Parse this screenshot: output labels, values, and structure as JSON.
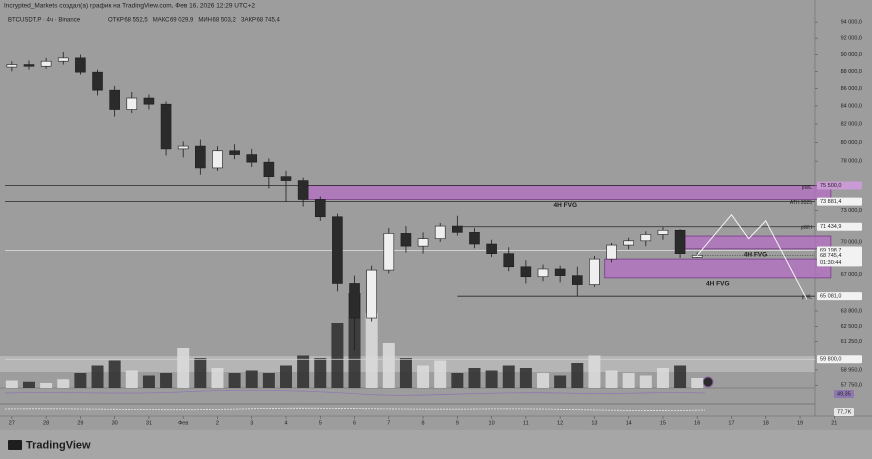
{
  "chart_data": {
    "type": "candlestick",
    "header": "Incrypted_Markets создал(а) график на TradingView.com, Фев 16, 2026 12:29 UTC+2",
    "symbol": "BTCUSDT.P · 4ч · Binance",
    "ohlc_legend": [
      {
        "name": "ОТКР",
        "value": 68552.5,
        "label": "68 552,5"
      },
      {
        "name": "МАКС",
        "value": 69029.9,
        "label": "69 029,9"
      },
      {
        "name": "МИН",
        "value": 68503.2,
        "label": "68 503,2"
      },
      {
        "name": "ЗАКР",
        "value": 68745.4,
        "label": "68 745,4"
      }
    ],
    "x": [
      0,
      0.5,
      1,
      1.5,
      2,
      2.5,
      3,
      3.5,
      4,
      4.5,
      5,
      5.5,
      6,
      6.5,
      7,
      7.5,
      8,
      8.5,
      9,
      9.5,
      10,
      10.5,
      11,
      11.5,
      12,
      12.5,
      13,
      13.5,
      14,
      14.5,
      15,
      15.5,
      16,
      16.5,
      17,
      17.5,
      18,
      18.5,
      19,
      19.5,
      20
    ],
    "open": [
      88500,
      88800,
      88600,
      89200,
      89600,
      87900,
      85800,
      83600,
      84900,
      84200,
      79300,
      79600,
      77300,
      79100,
      78700,
      77900,
      76400,
      76000,
      74100,
      72400,
      66200,
      63200,
      67400,
      70800,
      69600,
      70300,
      71500,
      70900,
      69800,
      68900,
      67700,
      66800,
      67500,
      66900,
      66100,
      68400,
      69700,
      70100,
      70700,
      71100,
      68552.5
    ],
    "high": [
      89200,
      89300,
      89600,
      90300,
      90000,
      88200,
      86300,
      85600,
      85300,
      84500,
      80100,
      80300,
      79600,
      79800,
      79300,
      78300,
      77000,
      76300,
      74400,
      72700,
      66900,
      67800,
      71300,
      71500,
      70900,
      71800,
      72500,
      71300,
      70200,
      69500,
      68300,
      67900,
      67800,
      67700,
      68700,
      69900,
      70400,
      71000,
      71400,
      71200,
      69029.9
    ],
    "low": [
      88000,
      88200,
      88300,
      88800,
      87600,
      85200,
      82800,
      83200,
      83600,
      78600,
      78400,
      76600,
      77000,
      78200,
      77400,
      75200,
      73900,
      73400,
      72000,
      65500,
      60500,
      62900,
      67100,
      69000,
      68900,
      70000,
      70600,
      69400,
      68600,
      67300,
      66200,
      66400,
      66300,
      65100,
      65900,
      68100,
      69300,
      69600,
      70200,
      68500,
      68503.2
    ],
    "close": [
      88800,
      88600,
      89200,
      89600,
      87900,
      85800,
      83600,
      84900,
      84200,
      79300,
      79600,
      77300,
      79100,
      78700,
      77900,
      76400,
      76000,
      74100,
      72400,
      66200,
      63200,
      67400,
      70800,
      69600,
      70300,
      71500,
      70900,
      69800,
      68900,
      67700,
      66800,
      67500,
      66900,
      66100,
      68400,
      69700,
      70100,
      70700,
      71100,
      68900,
      68745.4
    ],
    "volume": [
      30,
      25,
      20,
      35,
      60,
      90,
      110,
      70,
      50,
      60,
      160,
      120,
      80,
      60,
      70,
      60,
      90,
      130,
      120,
      260,
      380,
      300,
      180,
      120,
      90,
      110,
      60,
      80,
      70,
      90,
      80,
      60,
      50,
      100,
      130,
      70,
      60,
      50,
      80,
      90,
      40
    ],
    "volume_lim": [
      0,
      400
    ],
    "up_color": "#efefef",
    "down_color": "#2b2b2b",
    "xlim": [
      -0.2,
      24.4
    ],
    "xticks": [
      {
        "value": 0,
        "label": "27"
      },
      {
        "value": 1,
        "label": "28"
      },
      {
        "value": 2,
        "label": "29"
      },
      {
        "value": 3,
        "label": "30"
      },
      {
        "value": 4,
        "label": "31"
      },
      {
        "value": 5,
        "label": "Фев"
      },
      {
        "value": 6,
        "label": "2"
      },
      {
        "value": 7,
        "label": "3"
      },
      {
        "value": 8,
        "label": "4"
      },
      {
        "value": 9,
        "label": "5"
      },
      {
        "value": 10,
        "label": "6"
      },
      {
        "value": 11,
        "label": "7"
      },
      {
        "value": 12,
        "label": "8"
      },
      {
        "value": 13,
        "label": "9"
      },
      {
        "value": 14,
        "label": "10"
      },
      {
        "value": 15,
        "label": "11"
      },
      {
        "value": 16,
        "label": "12"
      },
      {
        "value": 17,
        "label": "13"
      },
      {
        "value": 18,
        "label": "14"
      },
      {
        "value": 19,
        "label": "15"
      },
      {
        "value": 20,
        "label": "16"
      },
      {
        "value": 21,
        "label": "17"
      },
      {
        "value": 22,
        "label": "18"
      },
      {
        "value": 23,
        "label": "19"
      },
      {
        "value": 24,
        "label": "21"
      }
    ],
    "ylim": [
      57000,
      95800
    ],
    "log": true,
    "yticks": [
      {
        "value": 94000,
        "label": "94 000,0"
      },
      {
        "value": 92000,
        "label": "92 000,0"
      },
      {
        "value": 90000,
        "label": "90 000,0"
      },
      {
        "value": 88000,
        "label": "88 000,0"
      },
      {
        "value": 86000,
        "label": "86 000,0"
      },
      {
        "value": 84000,
        "label": "84 000,0"
      },
      {
        "value": 82000,
        "label": "82 000,0"
      },
      {
        "value": 80000,
        "label": "80 000,0"
      },
      {
        "value": 78000,
        "label": "78 000,0"
      },
      {
        "value": 73000,
        "label": "73 000,0"
      },
      {
        "value": 70000,
        "label": "70 000,0"
      },
      {
        "value": 67000,
        "label": "67 000,0"
      },
      {
        "value": 63800,
        "label": "63 800,0"
      },
      {
        "value": 62500,
        "label": "62 500,0"
      },
      {
        "value": 61250,
        "label": "61 250,0"
      },
      {
        "value": 58950,
        "label": "58 950,0"
      },
      {
        "value": 57750,
        "label": "57 750,0"
      }
    ],
    "zones": [
      {
        "x": [
          8.4,
          23.9
        ],
        "y": [
          74100,
          75500
        ],
        "label": "4H FVG"
      },
      {
        "x": [
          19.5,
          23.9
        ],
        "y": [
          69350,
          70550
        ],
        "label": "4H FVG"
      },
      {
        "x": [
          17.3,
          23.9
        ],
        "y": [
          66700,
          68400
        ],
        "label": "4H FVG"
      }
    ],
    "levels": [
      {
        "value": 75500,
        "label": "75 500,0",
        "tag": "pWL",
        "from": -0.2
      },
      {
        "value": 73881.4,
        "label": "73 881,4",
        "tag": "ATH 2025",
        "from": -0.2
      },
      {
        "value": 71434.9,
        "label": "71 434,9",
        "tag": "pWH",
        "from": 13.1
      },
      {
        "value": 69198.7,
        "label": "69 198,7",
        "from": -0.2
      },
      {
        "value": 68745.4,
        "label": "68 745,4",
        "countdown": "01:30:44",
        "from": 20
      },
      {
        "value": 65081,
        "label": "65 081,0",
        "tag": "pWL",
        "from": 13
      },
      {
        "value": 59800,
        "label": "59 800,0",
        "from": -0.2
      }
    ],
    "projection": {
      "x": [
        20,
        21,
        21.5,
        22,
        23.2
      ],
      "y": [
        68745.4,
        72600,
        70300,
        72000,
        64800
      ]
    },
    "indicators": [
      {
        "value": 49.35,
        "label": "49,35"
      },
      {
        "value": 77700,
        "label": "77,7K"
      }
    ],
    "footer": "TradingView"
  }
}
